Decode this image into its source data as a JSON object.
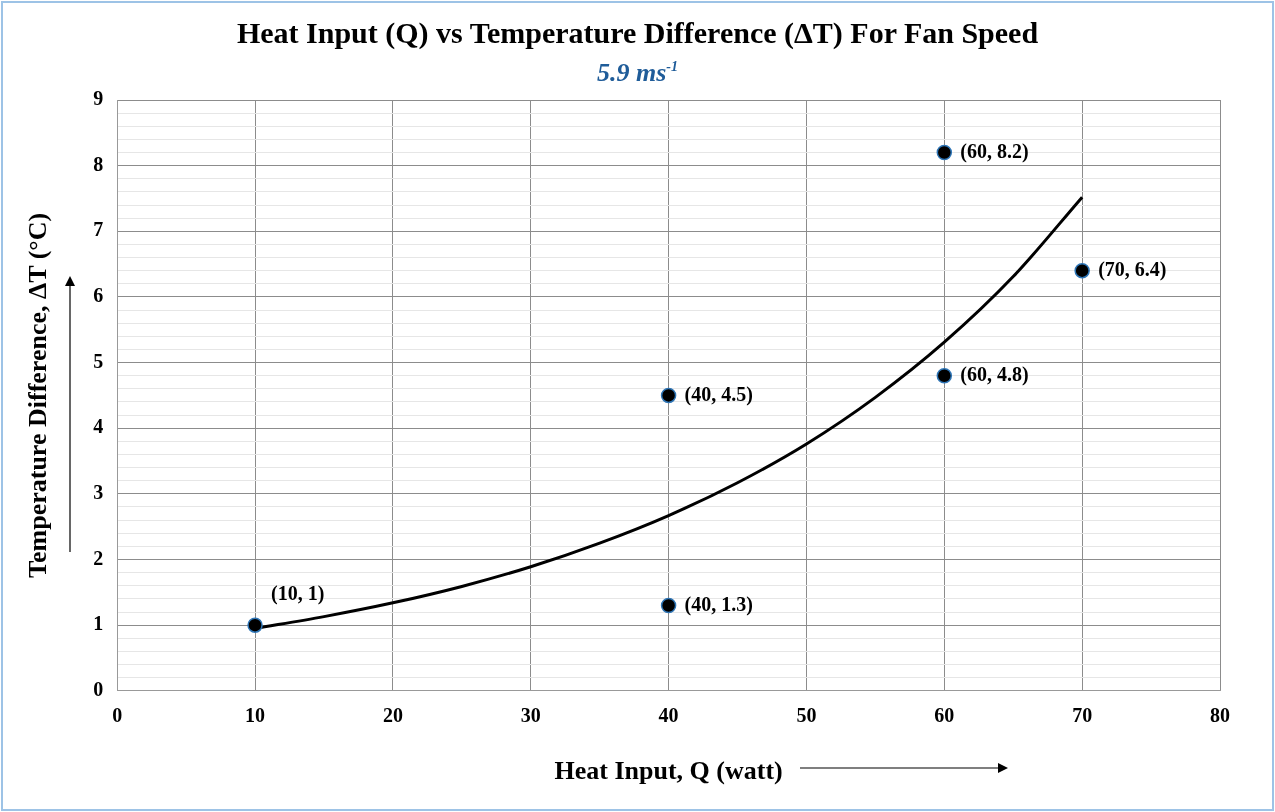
{
  "chart_data": {
    "type": "scatter",
    "title": "Heat Input (Q) vs Temperature Difference (ΔT) For Fan Speed",
    "subtitle": "5.9 ms$^{-1}$",
    "xlabel": "Heat Input, Q (watt)",
    "ylabel": "Temperature Difference, ΔT (°C)",
    "xlim": [
      0,
      80
    ],
    "xticks": [
      0,
      10,
      20,
      30,
      40,
      50,
      60,
      70,
      80
    ],
    "ylim": [
      0,
      9
    ],
    "yticks": [
      0,
      {
        "value": 0.2,
        "label": null
      },
      {
        "value": 0.4,
        "label": null
      },
      {
        "value": 0.6,
        "label": null
      },
      {
        "value": 0.8,
        "label": null
      },
      1,
      {
        "value": 1.2,
        "label": null
      },
      {
        "value": 1.4,
        "label": null
      },
      {
        "value": 1.6,
        "label": null
      },
      {
        "value": 1.8,
        "label": null
      },
      2,
      {
        "value": 2.2,
        "label": null
      },
      {
        "value": 2.4,
        "label": null
      },
      {
        "value": 2.6,
        "label": null
      },
      {
        "value": 2.8,
        "label": null
      },
      3,
      {
        "value": 3.2,
        "label": null
      },
      {
        "value": 3.4,
        "label": null
      },
      {
        "value": 3.6,
        "label": null
      },
      {
        "value": 3.8,
        "label": null
      },
      4,
      {
        "value": 4.2,
        "label": null
      },
      {
        "value": 4.4,
        "label": null
      },
      {
        "value": 4.6,
        "label": null
      },
      {
        "value": 4.8,
        "label": null
      },
      5,
      {
        "value": 5.2,
        "label": null
      },
      {
        "value": 5.4,
        "label": null
      },
      {
        "value": 5.6,
        "label": null
      },
      {
        "value": 5.8,
        "label": null
      },
      6,
      {
        "value": 6.2,
        "label": null
      },
      {
        "value": 6.4,
        "label": null
      },
      {
        "value": 6.6,
        "label": null
      },
      {
        "value": 6.8,
        "label": null
      },
      7,
      {
        "value": 7.2,
        "label": null
      },
      {
        "value": 7.4,
        "label": null
      },
      {
        "value": 7.6,
        "label": null
      },
      {
        "value": 7.8,
        "label": null
      },
      8,
      {
        "value": 8.2,
        "label": null
      },
      {
        "value": 8.4,
        "label": null
      },
      {
        "value": 8.6,
        "label": null
      },
      {
        "value": 8.8,
        "label": null
      },
      9
    ],
    "grid": true,
    "marker": "circle",
    "series": [
      {
        "color": "#000000",
        "x": [
          10,
          40,
          40,
          60,
          60,
          70
        ],
        "values": [
          1,
          4.5,
          1.3,
          8.2,
          4.8,
          6.4
        ],
        "value_labels": [
          "(10, 1)",
          "(40, 4.5)",
          "(40, 1.3)",
          "(60, 8.2)",
          "(60, 4.8)",
          "(70, 6.4)"
        ]
      },
      {
        "type": "line",
        "color": "#000000",
        "marker": "none",
        "x": [
          10,
          15,
          20,
          25,
          30,
          35,
          40,
          45,
          50,
          55,
          60,
          65,
          70
        ],
        "values": [
          0.95,
          1.13,
          1.34,
          1.59,
          1.89,
          2.25,
          2.67,
          3.17,
          3.76,
          4.47,
          5.31,
          6.31,
          7.52
        ]
      }
    ]
  }
}
